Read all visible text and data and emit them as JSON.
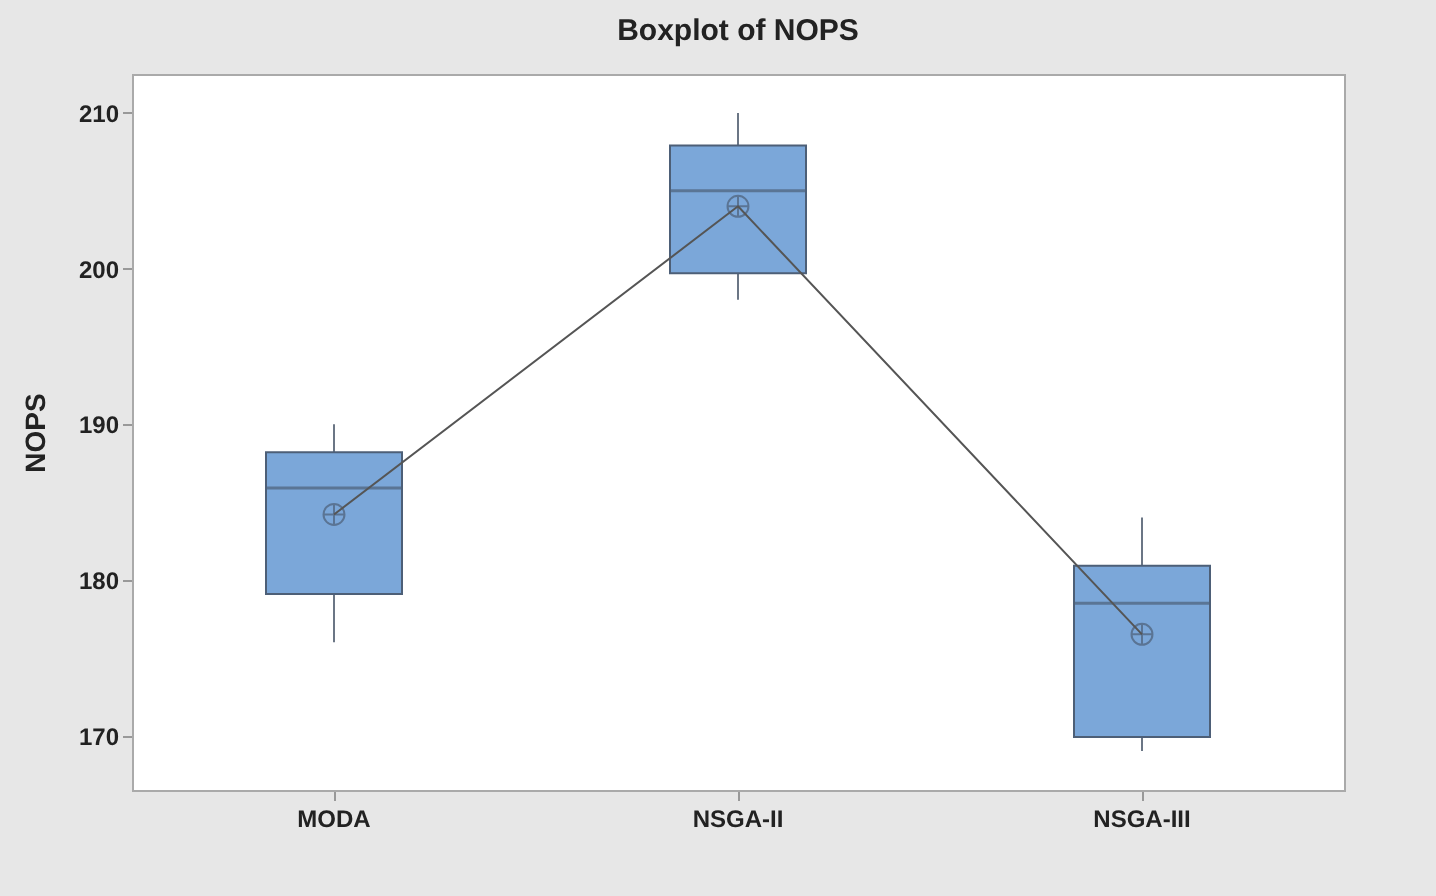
{
  "chart_data": {
    "type": "box",
    "title": "Boxplot of NOPS",
    "ylabel": "NOPS",
    "categories": [
      "MODA",
      "NSGA-II",
      "NSGA-III"
    ],
    "series": [
      {
        "color": "#7ba7d9",
        "boxes": [
          {
            "low": 176,
            "q1": 179.1,
            "median": 185.9,
            "q3": 188.2,
            "high": 190,
            "mean": 184.2
          },
          {
            "low": 198,
            "q1": 199.7,
            "median": 205,
            "q3": 207.9,
            "high": 210,
            "mean": 204
          },
          {
            "low": 169,
            "q1": 169.9,
            "median": 178.5,
            "q3": 180.9,
            "high": 184,
            "mean": 176.5
          }
        ]
      },
      {
        "type": "line",
        "color": "#555555",
        "values": [
          184.2,
          204,
          176.5
        ]
      }
    ],
    "ylim": [
      166.5,
      212.5
    ],
    "yticks": [
      170,
      180,
      190,
      200,
      210
    ]
  }
}
